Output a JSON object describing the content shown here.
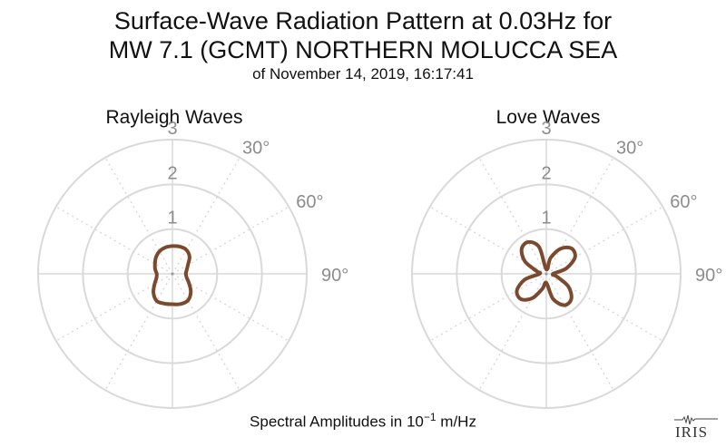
{
  "title": {
    "line1": "Surface-Wave Radiation Pattern at 0.03Hz for",
    "line2": "MW 7.1 (GCMT) NORTHERN MOLUCCA SEA",
    "line3": "of November 14, 2019, 16:17:41"
  },
  "footer": {
    "prefix": "Spectral Amplitudes in 10",
    "exponent": "−1",
    "unit": " m/Hz"
  },
  "logo": {
    "text": "IRIS",
    "icon": "seismogram-logo-icon"
  },
  "colors": {
    "curve": "#7b4a2e",
    "grid": "#d9d9d9",
    "label": "#8c8c8c"
  },
  "chart_data": [
    {
      "type": "polar-line",
      "title": "Rayleigh Waves",
      "radial_ticks": [
        "1",
        "2",
        "3"
      ],
      "radial_range": [
        0,
        3
      ],
      "angle_ticks": [
        "30°",
        "60°",
        "90°"
      ],
      "grid": true,
      "series": [
        {
          "angles_deg": [
            0,
            15,
            30,
            45,
            60,
            75,
            90,
            105,
            120,
            135,
            150,
            165,
            180,
            195,
            210,
            225,
            240,
            255,
            270,
            285,
            300,
            315,
            330,
            345
          ],
          "values": [
            0.62,
            0.63,
            0.62,
            0.54,
            0.4,
            0.33,
            0.3,
            0.33,
            0.43,
            0.58,
            0.69,
            0.7,
            0.68,
            0.69,
            0.7,
            0.6,
            0.46,
            0.37,
            0.35,
            0.4,
            0.45,
            0.52,
            0.58,
            0.61
          ]
        }
      ]
    },
    {
      "type": "polar-line",
      "title": "Love Waves",
      "radial_ticks": [
        "1",
        "2",
        "3"
      ],
      "radial_range": [
        0,
        3
      ],
      "angle_ticks": [
        "30°",
        "60°",
        "90°"
      ],
      "grid": true,
      "series": [
        {
          "angles_deg": [
            0,
            15,
            30,
            45,
            60,
            75,
            90,
            105,
            120,
            135,
            150,
            165,
            180,
            195,
            210,
            225,
            240,
            255,
            270,
            285,
            300,
            315,
            330,
            345
          ],
          "values": [
            0.1,
            0.37,
            0.65,
            0.8,
            0.74,
            0.46,
            0.15,
            0.25,
            0.57,
            0.79,
            0.81,
            0.58,
            0.2,
            0.35,
            0.63,
            0.8,
            0.76,
            0.5,
            0.15,
            0.22,
            0.55,
            0.78,
            0.82,
            0.62
          ]
        }
      ]
    }
  ]
}
